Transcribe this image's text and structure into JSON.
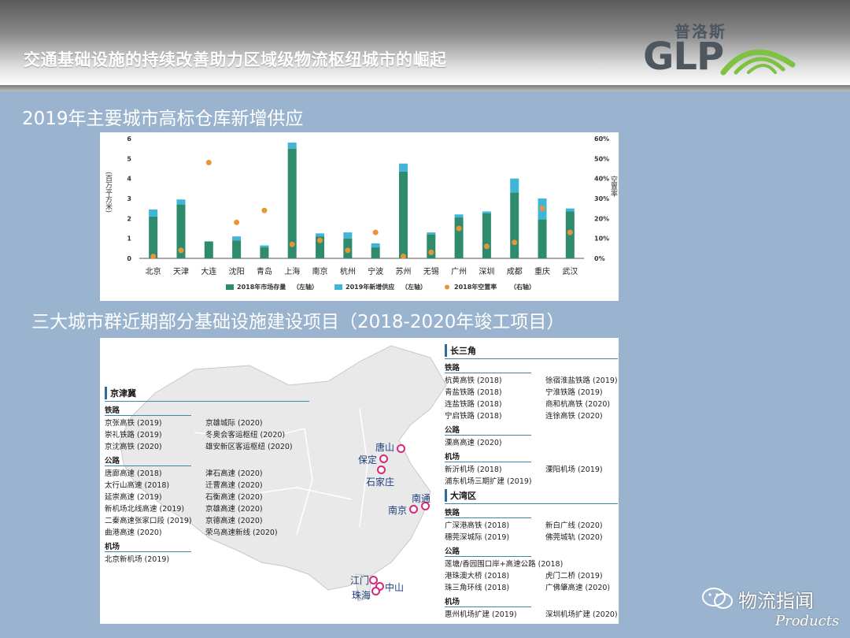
{
  "header": {
    "title": "交通基础设施的持续改善助力区域级物流枢纽城市的崛起"
  },
  "logo": {
    "cn": "普洛斯",
    "en": "GLP"
  },
  "section1": {
    "title": "2019年主要城市高标仓库新增供应"
  },
  "section2": {
    "title": "三大城市群近期部分基础设施建设项目（2018-2020年竣工项目）"
  },
  "chart_data": {
    "type": "bar",
    "ylabel": "(百万平方米)",
    "y2label": "空置率",
    "ylim": [
      0,
      6
    ],
    "y2lim": [
      0,
      60
    ],
    "yticks": [
      "0",
      "1",
      "2",
      "3",
      "4",
      "5",
      "6"
    ],
    "y2ticks": [
      "0%",
      "10%",
      "20%",
      "30%",
      "40%",
      "50%",
      "60%"
    ],
    "categories": [
      "北京",
      "天津",
      "大连",
      "沈阳",
      "青岛",
      "上海",
      "南京",
      "杭州",
      "宁波",
      "苏州",
      "无锡",
      "广州",
      "深圳",
      "成都",
      "重庆",
      "武汉"
    ],
    "series": [
      {
        "name": "2018年市场存量",
        "axis": "left",
        "kind": "stacked-bar",
        "color": "#2e8b6e",
        "values": [
          2.1,
          2.7,
          0.85,
          0.9,
          0.55,
          5.5,
          1.1,
          1.0,
          0.55,
          4.35,
          1.2,
          2.05,
          2.25,
          3.3,
          1.95,
          2.35
        ]
      },
      {
        "name": "2019年新增供应",
        "axis": "left",
        "kind": "stacked-bar",
        "color": "#3fb6d8",
        "values": [
          0.35,
          0.25,
          0.0,
          0.2,
          0.1,
          0.3,
          0.15,
          0.3,
          0.2,
          0.4,
          0.1,
          0.15,
          0.1,
          0.7,
          1.05,
          0.15
        ]
      },
      {
        "name": "2018年空置率",
        "axis": "right",
        "kind": "dot",
        "color": "#e8953a",
        "values": [
          1,
          4,
          48,
          18,
          24,
          7,
          9,
          4,
          13,
          1,
          3,
          15,
          6,
          8,
          25,
          13
        ]
      }
    ],
    "legend": {
      "items": [
        "2018年市场存量",
        "2019年新增供应",
        "2018年空置率"
      ],
      "axis_notes": [
        "（左轴）",
        "（左轴）",
        "（右轴）"
      ],
      "placement": "bottom"
    }
  },
  "map": {
    "cities": [
      "唐山",
      "保定",
      "石家庄",
      "南通",
      "南京",
      "江门",
      "中山",
      "珠海"
    ],
    "jjj": {
      "title": "京津冀",
      "railway": {
        "label": "铁路",
        "rows": [
          [
            "京张高铁 (2019)",
            "京雄城际 (2020)"
          ],
          [
            "崇礼铁路 (2019)",
            "冬奥会客运枢纽 (2020)"
          ],
          [
            "京沈高铁 (2020)",
            "雄安新区客运枢纽 (2020)"
          ]
        ]
      },
      "highway": {
        "label": "公路",
        "rows": [
          [
            "唐廊高速 (2018)",
            "津石高速 (2020)"
          ],
          [
            "太行山高速 (2018)",
            "迁曹高速 (2020)"
          ],
          [
            "延崇高速 (2019)",
            "石衡高速 (2020)"
          ],
          [
            "新机场北线高速 (2019)",
            "京雄高速 (2020)"
          ],
          [
            "二秦高速张家口段 (2019)",
            "京德高速 (2020)"
          ],
          [
            "曲港高速 (2020)",
            "荣乌高速新线 (2020)"
          ]
        ]
      },
      "airport": {
        "label": "机场",
        "rows": [
          [
            "北京新机场 (2019)",
            ""
          ]
        ]
      }
    },
    "csj": {
      "title": "长三角",
      "railway": {
        "label": "铁路",
        "rows": [
          [
            "杭黄高铁 (2018)",
            "徐宿淮盐铁路 (2019)"
          ],
          [
            "青盐铁路 (2018)",
            "宁淮铁路 (2019)"
          ],
          [
            "连盐铁路 (2018)",
            "商和杭高铁 (2020)"
          ],
          [
            "宁启铁路 (2018)",
            "连徐高铁 (2020)"
          ]
        ]
      },
      "highway": {
        "label": "公路",
        "rows": [
          [
            "溧高高速 (2020)",
            ""
          ]
        ]
      },
      "airport": {
        "label": "机场",
        "rows": [
          [
            "新沂机场 (2018)",
            "溧阳机场 (2019)"
          ],
          [
            "浦东机场三期扩建 (2019)",
            ""
          ]
        ]
      }
    },
    "dwq": {
      "title": "大湾区",
      "railway": {
        "label": "铁路",
        "rows": [
          [
            "广深港高铁 (2018)",
            "新白广线 (2020)"
          ],
          [
            "穗莞深城际 (2019)",
            "佛莞城轨 (2020)"
          ]
        ]
      },
      "highway": {
        "label": "公路",
        "rows": [
          [
            "莲塘/香园围口岸+高速公路 (2018)",
            ""
          ],
          [
            "港珠澳大桥 (2018)",
            "虎门二桥 (2019)"
          ],
          [
            "珠三角环线 (2018)",
            "广佛肇高速 (2020)"
          ]
        ]
      },
      "airport": {
        "label": "机场",
        "rows": [
          [
            "惠州机场扩建 (2019)",
            "深圳机场扩建 (2020)"
          ]
        ]
      }
    }
  },
  "watermark": {
    "text": "物流指闻",
    "sub": "Products"
  },
  "colors": {
    "background": "#9ab4cf",
    "stock": "#2e8b6e",
    "supply": "#3fb6d8",
    "vacancy": "#e8953a",
    "city": "#d6287a"
  }
}
